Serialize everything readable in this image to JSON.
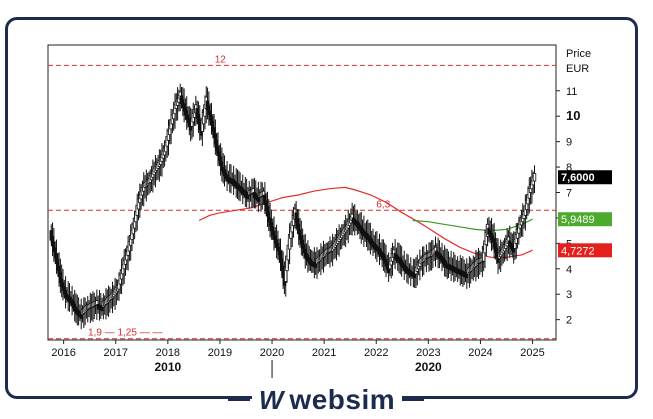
{
  "brand": {
    "name": "websim",
    "mark": "W"
  },
  "colors": {
    "frame": "#1d2b4f",
    "candle": "#111111",
    "dashed": "#d62f2f",
    "ma_red": "#e0302e",
    "ma_green": "#3a9a2a",
    "badge_black": "#000000",
    "badge_green": "#4caa2c",
    "badge_red": "#e3201b"
  },
  "chart_data": {
    "type": "candlestick",
    "y_axis_title": "Price",
    "y_axis_unit": "EUR",
    "ylim": [
      1.2,
      12.8
    ],
    "y_ticks": [
      "2",
      "3",
      "4",
      "5",
      "6",
      "7",
      "8",
      "9",
      "10",
      "11"
    ],
    "y_tick_values": [
      2,
      3,
      4,
      5,
      6,
      7,
      8,
      9,
      10,
      11
    ],
    "bold_tick": "10",
    "x_ticks": [
      "2016",
      "2017",
      "2018",
      "2019",
      "2020",
      "2021",
      "2022",
      "2023",
      "2024",
      "2025"
    ],
    "x_tick_values": [
      2016,
      2017,
      2018,
      2019,
      2020,
      2021,
      2022,
      2023,
      2024,
      2025
    ],
    "decades": [
      "2010",
      "2020"
    ],
    "decade_values": [
      2018,
      2023
    ],
    "xlim": [
      2015.7,
      2025.45
    ],
    "horizontal_levels": [
      {
        "value": 12,
        "label": "12"
      },
      {
        "value": 6.3,
        "label": "6,3"
      },
      {
        "value": 1.25,
        "label": "1,9 — 1,25 — —"
      }
    ],
    "badges": [
      {
        "label": "7,6000",
        "value": 7.6,
        "style": "black"
      },
      {
        "label": "5,9489",
        "value": 5.9489,
        "style": "green"
      },
      {
        "label": "4,7272",
        "value": 4.7272,
        "style": "red"
      }
    ],
    "price_path": [
      [
        2015.75,
        5.5
      ],
      [
        2015.85,
        4.6
      ],
      [
        2015.95,
        3.6
      ],
      [
        2016.05,
        3.0
      ],
      [
        2016.15,
        2.8
      ],
      [
        2016.25,
        2.4
      ],
      [
        2016.35,
        2.2
      ],
      [
        2016.45,
        2.4
      ],
      [
        2016.55,
        2.5
      ],
      [
        2016.65,
        2.6
      ],
      [
        2016.75,
        2.5
      ],
      [
        2016.85,
        2.7
      ],
      [
        2016.95,
        2.9
      ],
      [
        2017.05,
        3.2
      ],
      [
        2017.15,
        4.0
      ],
      [
        2017.25,
        4.7
      ],
      [
        2017.35,
        5.6
      ],
      [
        2017.45,
        6.6
      ],
      [
        2017.55,
        7.2
      ],
      [
        2017.65,
        7.4
      ],
      [
        2017.75,
        7.8
      ],
      [
        2017.85,
        8.1
      ],
      [
        2017.95,
        8.6
      ],
      [
        2018.05,
        9.5
      ],
      [
        2018.15,
        10.3
      ],
      [
        2018.25,
        10.8
      ],
      [
        2018.35,
        10.2
      ],
      [
        2018.45,
        9.6
      ],
      [
        2018.55,
        10.3
      ],
      [
        2018.65,
        9.4
      ],
      [
        2018.75,
        10.6
      ],
      [
        2018.85,
        9.8
      ],
      [
        2018.95,
        8.8
      ],
      [
        2019.05,
        8.0
      ],
      [
        2019.15,
        7.6
      ],
      [
        2019.25,
        7.5
      ],
      [
        2019.35,
        7.3
      ],
      [
        2019.45,
        7.1
      ],
      [
        2019.55,
        6.9
      ],
      [
        2019.65,
        7.0
      ],
      [
        2019.75,
        6.8
      ],
      [
        2019.85,
        6.9
      ],
      [
        2019.95,
        6.0
      ],
      [
        2020.05,
        5.3
      ],
      [
        2020.15,
        4.7
      ],
      [
        2020.25,
        3.5
      ],
      [
        2020.35,
        5.2
      ],
      [
        2020.45,
        6.2
      ],
      [
        2020.55,
        5.3
      ],
      [
        2020.65,
        4.6
      ],
      [
        2020.75,
        4.3
      ],
      [
        2020.85,
        4.2
      ],
      [
        2020.95,
        4.4
      ],
      [
        2021.05,
        4.6
      ],
      [
        2021.15,
        4.7
      ],
      [
        2021.25,
        5.0
      ],
      [
        2021.35,
        5.3
      ],
      [
        2021.45,
        5.6
      ],
      [
        2021.55,
        6.0
      ],
      [
        2021.65,
        5.8
      ],
      [
        2021.75,
        5.5
      ],
      [
        2021.85,
        5.3
      ],
      [
        2021.95,
        5.0
      ],
      [
        2022.05,
        4.8
      ],
      [
        2022.15,
        4.5
      ],
      [
        2022.25,
        4.0
      ],
      [
        2022.35,
        4.6
      ],
      [
        2022.45,
        4.4
      ],
      [
        2022.55,
        4.1
      ],
      [
        2022.65,
        3.9
      ],
      [
        2022.75,
        3.8
      ],
      [
        2022.85,
        4.2
      ],
      [
        2022.95,
        4.4
      ],
      [
        2023.05,
        4.5
      ],
      [
        2023.15,
        4.7
      ],
      [
        2023.25,
        4.5
      ],
      [
        2023.35,
        4.2
      ],
      [
        2023.45,
        4.1
      ],
      [
        2023.55,
        4.0
      ],
      [
        2023.65,
        3.9
      ],
      [
        2023.75,
        3.8
      ],
      [
        2023.85,
        4.0
      ],
      [
        2023.95,
        4.2
      ],
      [
        2024.05,
        4.3
      ],
      [
        2024.15,
        5.6
      ],
      [
        2024.25,
        5.2
      ],
      [
        2024.35,
        4.4
      ],
      [
        2024.45,
        4.7
      ],
      [
        2024.55,
        5.1
      ],
      [
        2024.65,
        4.8
      ],
      [
        2024.75,
        5.6
      ],
      [
        2024.85,
        6.1
      ],
      [
        2024.95,
        7.0
      ],
      [
        2025.05,
        7.6
      ]
    ],
    "ma_red": [
      [
        2018.6,
        5.9
      ],
      [
        2018.8,
        6.1
      ],
      [
        2019.0,
        6.2
      ],
      [
        2019.3,
        6.3
      ],
      [
        2019.6,
        6.4
      ],
      [
        2019.9,
        6.6
      ],
      [
        2020.2,
        6.8
      ],
      [
        2020.5,
        6.9
      ],
      [
        2020.8,
        7.05
      ],
      [
        2021.1,
        7.15
      ],
      [
        2021.4,
        7.2
      ],
      [
        2021.6,
        7.1
      ],
      [
        2021.9,
        6.9
      ],
      [
        2022.2,
        6.6
      ],
      [
        2022.5,
        6.2
      ],
      [
        2022.8,
        5.85
      ],
      [
        2023.0,
        5.6
      ],
      [
        2023.3,
        5.2
      ],
      [
        2023.6,
        4.85
      ],
      [
        2023.9,
        4.6
      ],
      [
        2024.2,
        4.45
      ],
      [
        2024.5,
        4.45
      ],
      [
        2024.8,
        4.55
      ],
      [
        2025.0,
        4.73
      ]
    ],
    "ma_green": [
      [
        2022.7,
        5.9
      ],
      [
        2023.0,
        5.85
      ],
      [
        2023.3,
        5.75
      ],
      [
        2023.6,
        5.65
      ],
      [
        2023.9,
        5.55
      ],
      [
        2024.2,
        5.5
      ],
      [
        2024.5,
        5.55
      ],
      [
        2024.8,
        5.75
      ],
      [
        2025.0,
        5.95
      ]
    ]
  }
}
